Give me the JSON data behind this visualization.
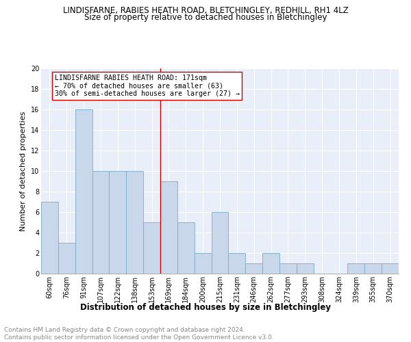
{
  "title": "LINDISFARNE, RABIES HEATH ROAD, BLETCHINGLEY, REDHILL, RH1 4LZ",
  "subtitle": "Size of property relative to detached houses in Bletchingley",
  "xlabel": "Distribution of detached houses by size in Bletchingley",
  "ylabel": "Number of detached properties",
  "categories": [
    "60sqm",
    "76sqm",
    "91sqm",
    "107sqm",
    "122sqm",
    "138sqm",
    "153sqm",
    "169sqm",
    "184sqm",
    "200sqm",
    "215sqm",
    "231sqm",
    "246sqm",
    "262sqm",
    "277sqm",
    "293sqm",
    "308sqm",
    "324sqm",
    "339sqm",
    "355sqm",
    "370sqm"
  ],
  "values": [
    7,
    3,
    16,
    10,
    10,
    10,
    5,
    9,
    5,
    2,
    6,
    2,
    1,
    2,
    1,
    1,
    0,
    0,
    1,
    1,
    1
  ],
  "bar_color": "#c8d8ea",
  "bar_edge_color": "#7aaac8",
  "ref_line_index": 7,
  "annotation_line1": "LINDISFARNE RABIES HEATH ROAD: 171sqm",
  "annotation_line2": "← 70% of detached houses are smaller (63)",
  "annotation_line3": "30% of semi-detached houses are larger (27) →",
  "annotation_box_color": "#ffffff",
  "annotation_box_edge": "#cc0000",
  "ref_line_color": "#cc0000",
  "ylim": [
    0,
    20
  ],
  "yticks": [
    0,
    2,
    4,
    6,
    8,
    10,
    12,
    14,
    16,
    18,
    20
  ],
  "footer_line1": "Contains HM Land Registry data © Crown copyright and database right 2024.",
  "footer_line2": "Contains public sector information licensed under the Open Government Licence v3.0.",
  "plot_bg_color": "#e8eff8",
  "title_fontsize": 8.5,
  "subtitle_fontsize": 8.5,
  "xlabel_fontsize": 8.5,
  "ylabel_fontsize": 8.0,
  "tick_fontsize": 7.0,
  "footer_fontsize": 6.5,
  "annotation_fontsize": 7.2
}
